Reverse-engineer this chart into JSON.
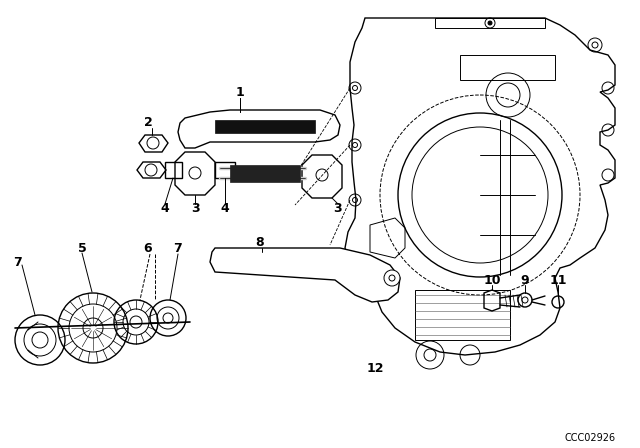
{
  "background_color": "#ffffff",
  "watermark": "CCC02926",
  "line_color": "#000000",
  "text_color": "#000000",
  "thin_lw": 0.7,
  "medium_lw": 1.0,
  "thick_lw": 1.5
}
